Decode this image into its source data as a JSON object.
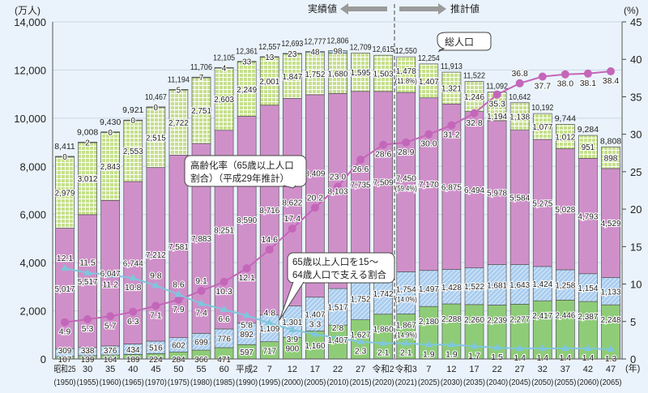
{
  "chart_data": {
    "type": "bar",
    "stacked": true,
    "left_axis": {
      "unit_label": "(万人)",
      "ylim": [
        0,
        14000
      ],
      "ticks": [
        "0",
        "2,000",
        "4,000",
        "6,000",
        "8,000",
        "10,000",
        "12,000",
        "14,000"
      ]
    },
    "right_axis": {
      "unit_label": "(%)",
      "ylim": [
        0,
        45
      ],
      "ticks": [
        "0",
        "5",
        "10",
        "15",
        "20",
        "25",
        "30",
        "35",
        "40",
        "45"
      ]
    },
    "x_unit_label": "(年)",
    "grid": true,
    "period_labels": {
      "actual": "実績値",
      "projected": "推計値"
    },
    "categories": [
      "昭和25",
      "30",
      "35",
      "40",
      "45",
      "50",
      "55",
      "60",
      "平成2",
      "7",
      "12",
      "17",
      "22",
      "27",
      "令和2",
      "令和3",
      "7",
      "12",
      "17",
      "22",
      "27",
      "32",
      "37",
      "42",
      "47"
    ],
    "years": [
      "(1950)",
      "(1955)",
      "(1960)",
      "(1965)",
      "(1970)",
      "(1975)",
      "(1980)",
      "(1985)",
      "(1990)",
      "(1995)",
      "(2000)",
      "(2005)",
      "(2010)",
      "(2015)",
      "(2020)",
      "(2021)",
      "(2025)",
      "(2030)",
      "(2035)",
      "(2040)",
      "(2045)",
      "(2050)",
      "(2055)",
      "(2060)",
      "(2065)"
    ],
    "totals": [
      8411,
      9008,
      9430,
      9921,
      10467,
      11194,
      11706,
      12105,
      12361,
      12557,
      12693,
      12777,
      12806,
      12709,
      12615,
      12550,
      12254,
      11913,
      11522,
      11092,
      10642,
      10192,
      9744,
      9284,
      8808
    ],
    "series": [
      {
        "key": "age75plus",
        "color": "#8fcc78",
        "values": [
          107,
          139,
          164,
          189,
          224,
          284,
          366,
          471,
          597,
          717,
          900,
          1160,
          1407,
          1627,
          1860,
          1867,
          2180,
          2288,
          2260,
          2239,
          2277,
          2417,
          2446,
          2387,
          2248
        ]
      },
      {
        "key": "age65to74",
        "color": "#a9cdef",
        "values": [
          309,
          338,
          376,
          434,
          516,
          602,
          699,
          776,
          892,
          1109,
          1301,
          1407,
          1517,
          1752,
          1742,
          1754,
          1497,
          1428,
          1522,
          1681,
          1643,
          1424,
          1258,
          1154,
          1133
        ]
      },
      {
        "key": "age15to64",
        "color": "#cf90c9",
        "values": [
          5017,
          5517,
          6047,
          6744,
          7212,
          7581,
          7883,
          8251,
          8590,
          8716,
          8622,
          8409,
          8103,
          7735,
          7509,
          7450,
          7170,
          6875,
          6494,
          5978,
          5584,
          5275,
          5028,
          4793,
          4529
        ]
      },
      {
        "key": "age0to14",
        "color": "#c6e08c",
        "values": [
          2979,
          3012,
          2843,
          2553,
          2515,
          2722,
          2751,
          2603,
          2249,
          2001,
          1847,
          1752,
          1680,
          1595,
          1503,
          1478,
          1407,
          1321,
          1246,
          1194,
          1138,
          1077,
          1012,
          951,
          898
        ]
      },
      {
        "key": "unknown",
        "color": "#9fd0e8",
        "values": [
          0,
          2,
          0,
          0,
          0,
          5,
          7,
          4,
          33,
          13,
          23,
          48,
          98,
          null,
          null,
          null,
          null,
          null,
          null,
          null,
          null,
          null,
          null,
          null,
          null
        ]
      }
    ],
    "share_2021": {
      "age0to14": "(11.8%)",
      "age15to64": "(59.4%)",
      "age65to74": "(14.0%)",
      "age75plus": "(14.9%)"
    },
    "lines": [
      {
        "key": "aging_rate",
        "axis": "right",
        "color": "#c466b9",
        "label": "高齢化率（65歳以上人口割合）（平成29年推計）",
        "values": [
          4.9,
          5.3,
          5.7,
          6.3,
          7.1,
          7.9,
          9.1,
          10.3,
          12.1,
          14.6,
          17.4,
          20.2,
          23.0,
          26.6,
          28.6,
          28.9,
          30.0,
          31.2,
          32.8,
          35.3,
          36.8,
          37.7,
          38.0,
          38.1,
          38.4
        ]
      },
      {
        "key": "support_ratio",
        "axis": "right",
        "color": "#7ec6dc",
        "label": "65歳以上人口を15～64歳人口で支える割合",
        "values": [
          12.1,
          11.5,
          11.2,
          10.8,
          9.8,
          8.6,
          7.4,
          6.6,
          5.8,
          4.8,
          3.9,
          3.3,
          2.8,
          2.3,
          2.1,
          2.1,
          1.9,
          1.9,
          1.7,
          1.5,
          1.4,
          1.4,
          1.4,
          1.4,
          1.3
        ]
      }
    ],
    "callouts": {
      "total": "総人口",
      "aging_rate_line1": "高齢化率（65歳以上人口",
      "aging_rate_line2": "割合）（平成29年推計）",
      "support_line1": "65歳以上人口を15～",
      "support_line2": "64歳人口で支える割合"
    }
  }
}
